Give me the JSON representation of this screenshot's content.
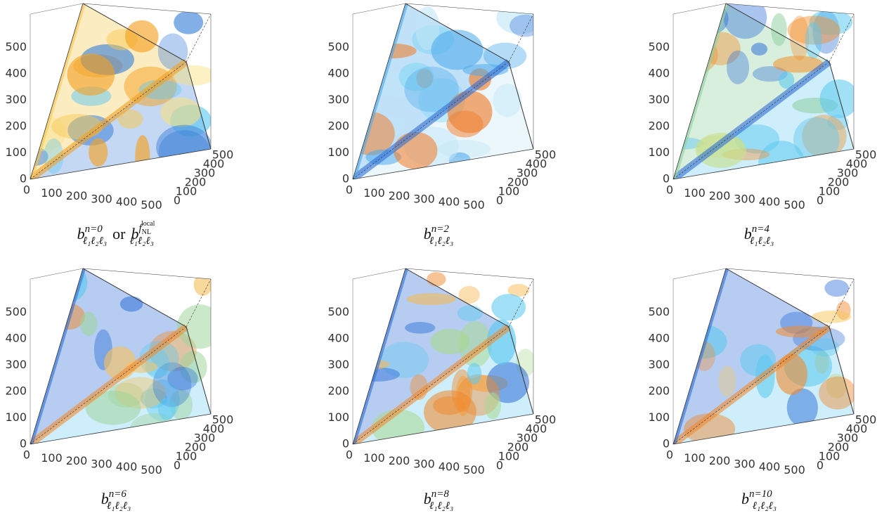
{
  "axis_ticks": [
    "0",
    "100",
    "200",
    "300",
    "400",
    "500"
  ],
  "panels": [
    {
      "caption": {
        "base": "b",
        "sup": "n=0",
        "sub": "ℓ₁ℓ₂ℓ₃",
        "alt": {
          "joiner": "or",
          "base": "b",
          "sup_base": "f",
          "sup_sub": "NL",
          "sup_sup": "local",
          "sub": "ℓ₁ℓ₂ℓ₃"
        }
      }
    },
    {
      "caption": {
        "base": "b",
        "sup": "n=2",
        "sub": "ℓ₁ℓ₂ℓ₃"
      }
    },
    {
      "caption": {
        "base": "b",
        "sup": "n=4",
        "sub": "ℓ₁ℓ₂ℓ₃"
      }
    },
    {
      "caption": {
        "base": "b",
        "sup": "n=6",
        "sub": "ℓ₁ℓ₂ℓ₃"
      }
    },
    {
      "caption": {
        "base": "b",
        "sup": "n=8",
        "sub": "ℓ₁ℓ₂ℓ₃"
      }
    },
    {
      "caption": {
        "base": "b",
        "sup": "n=10",
        "sub": "ℓ₁ℓ₂ℓ₃"
      }
    }
  ]
}
